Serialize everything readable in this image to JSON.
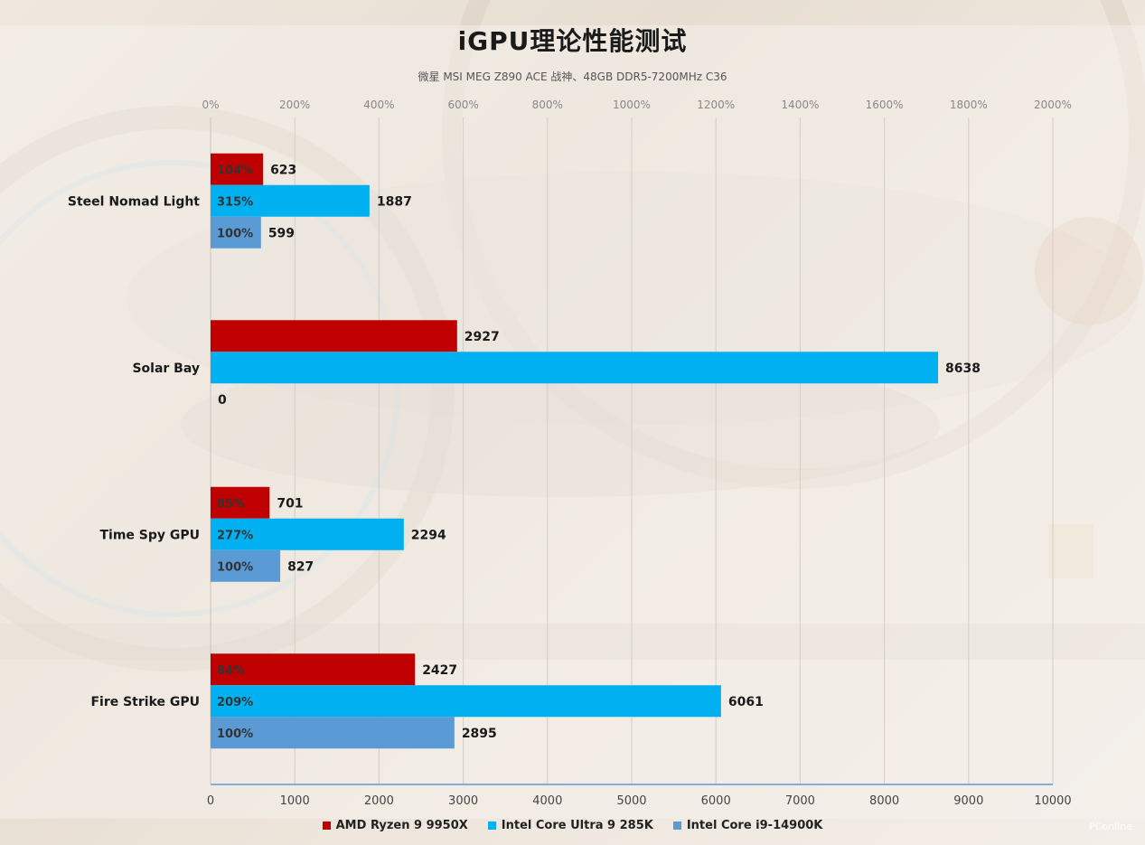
{
  "title": "iGPU理论性能测试",
  "subtitle": "微星 MSI MEG Z890 ACE 战神、48GB DDR5-7200MHz  C36",
  "watermark": "PConline",
  "colors": {
    "amd": "#c00000",
    "ultra": "#00b0f0",
    "i9": "#5b9bd5"
  },
  "chart_data": {
    "type": "bar",
    "orientation": "horizontal",
    "categories": [
      "Steel Nomad Light",
      "Solar Bay",
      "Time Spy GPU",
      "Fire Strike GPU"
    ],
    "series": [
      {
        "name": "AMD Ryzen 9 9950X",
        "color": "#c00000",
        "values": [
          623,
          2927,
          701,
          2427
        ],
        "percent_labels": [
          "104%",
          "",
          "85%",
          "84%"
        ]
      },
      {
        "name": "Intel Core Ultra 9 285K",
        "color": "#00b0f0",
        "values": [
          1887,
          8638,
          2294,
          6061
        ],
        "percent_labels": [
          "315%",
          "",
          "277%",
          "209%"
        ]
      },
      {
        "name": "Intel Core i9-14900K",
        "color": "#5b9bd5",
        "values": [
          599,
          0,
          827,
          2895
        ],
        "percent_labels": [
          "100%",
          "",
          "100%",
          "100%"
        ]
      }
    ],
    "xlim": [
      0,
      10000
    ],
    "x_ticks": [
      "0",
      "1000",
      "2000",
      "3000",
      "4000",
      "5000",
      "6000",
      "7000",
      "8000",
      "9000",
      "10000"
    ],
    "secondary_xlim": [
      0,
      2000
    ],
    "secondary_x_ticks": [
      "0%",
      "200%",
      "400%",
      "600%",
      "800%",
      "1000%",
      "1200%",
      "1400%",
      "1600%",
      "1800%",
      "2000%"
    ],
    "grid": true,
    "legend_position": "bottom"
  }
}
